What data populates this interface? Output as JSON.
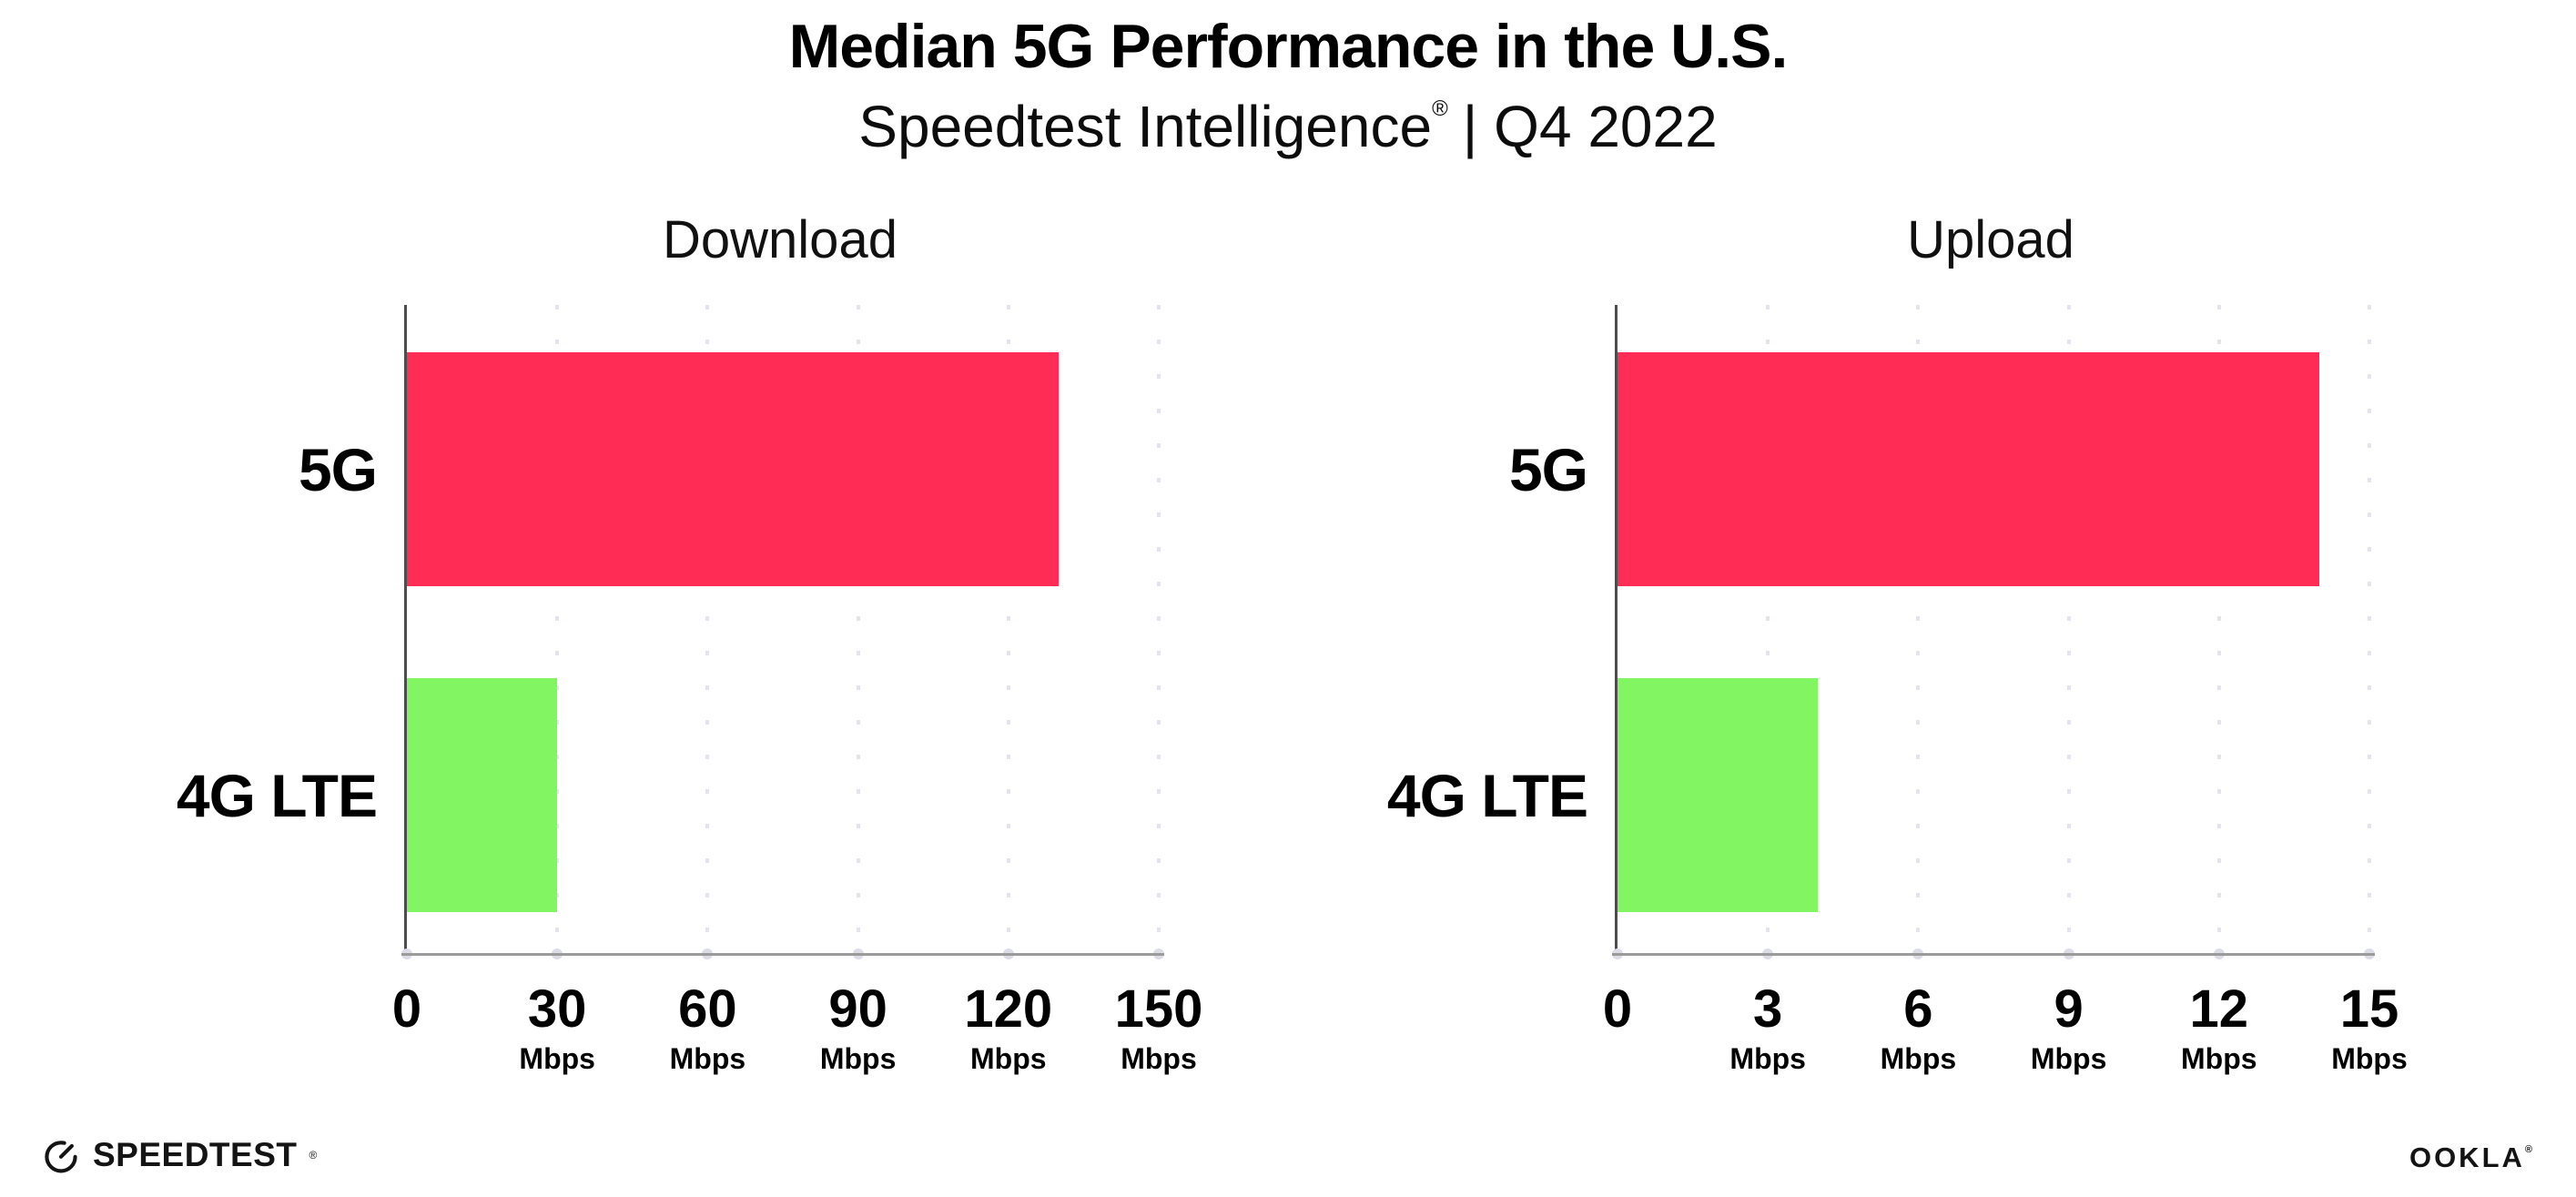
{
  "header": {
    "title": "Median 5G Performance in the U.S.",
    "subtitle_brand": "Speedtest Intelligence",
    "subtitle_mark": "®",
    "subtitle_rest": "| Q4 2022"
  },
  "chart_data": [
    {
      "type": "bar",
      "orientation": "horizontal",
      "title": "Download",
      "categories": [
        "5G",
        "4G LTE"
      ],
      "values": [
        130,
        30
      ],
      "unit": "Mbps",
      "xlim": [
        0,
        150
      ],
      "xticks": [
        0,
        30,
        60,
        90,
        120,
        150
      ],
      "bar_colors": [
        "#FF2D55",
        "#82F563"
      ],
      "grid": "dotted-vertical",
      "legend": "none"
    },
    {
      "type": "bar",
      "orientation": "horizontal",
      "title": "Upload",
      "categories": [
        "5G",
        "4G LTE"
      ],
      "values": [
        14,
        4
      ],
      "unit": "Mbps",
      "xlim": [
        0,
        15
      ],
      "xticks": [
        0,
        3,
        6,
        9,
        12,
        15
      ],
      "bar_colors": [
        "#FF2D55",
        "#82F563"
      ],
      "grid": "dotted-vertical",
      "legend": "none"
    }
  ],
  "footer": {
    "speedtest_label": "SPEEDTEST",
    "speedtest_mark": "®",
    "ookla_label": "OOKLA",
    "ookla_mark": "®"
  },
  "colors": {
    "bar_5g": "#FF2D55",
    "bar_4g_lte": "#82F563",
    "gridline": "#E4E4EE",
    "baseline": "#9B9B9B",
    "y_axis": "#4D4D4D",
    "tick_dot": "#DCDCE6",
    "text": "#000000"
  }
}
